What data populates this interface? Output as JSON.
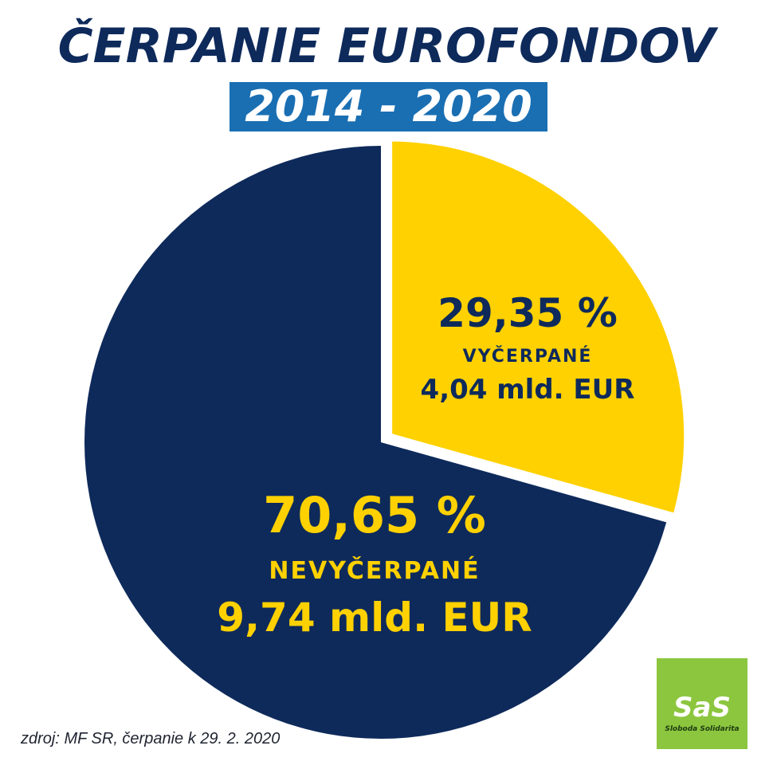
{
  "header": {
    "title": "ČERPANIE EUROFONDOV",
    "subtitle": "2014 - 2020"
  },
  "chart_data": {
    "type": "pie",
    "start_angle_deg": 0,
    "direction": "clockwise",
    "slices": [
      {
        "percent_label": "29,35 %",
        "category": "VYČERPANÉ",
        "amount_label": "4,04 mld. EUR",
        "value": 29.35,
        "amount": 4.04,
        "color": "#ffd100",
        "text_color": "#0e2a5b",
        "exploded": true
      },
      {
        "percent_label": "70,65 %",
        "category": "NEVYČERPANÉ",
        "amount_label": "9,74 mld. EUR",
        "value": 70.65,
        "amount": 9.74,
        "color": "#0e2a5b",
        "text_color": "#ffd100",
        "exploded": false
      }
    ]
  },
  "footer": {
    "source": "zdroj: MF SR, čerpanie k 29. 2. 2020"
  },
  "logo": {
    "mark": "SaS",
    "tagline": "Sloboda Solidarita",
    "color": "#8cc63f"
  }
}
